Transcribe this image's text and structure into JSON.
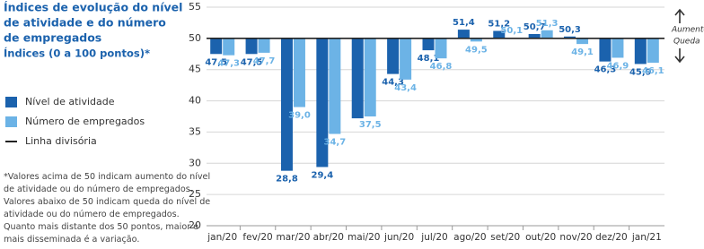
{
  "chart_data": {
    "type": "bar",
    "title_lines": [
      "Índices de evolução do nível",
      "de atividade e do número",
      "de empregados"
    ],
    "subtitle": "Índices (0 a 100 pontos)*",
    "footnote_lines": [
      "*Valores acima de 50 indicam aumento do nível",
      "de atividade ou do número de empregados.",
      "Valores abaixo de 50 indicam queda do nível de",
      "atividade ou do número de empregados.",
      "Quanto mais distante dos 50 pontos, maior e",
      "mais disseminada é a variação."
    ],
    "annotations": {
      "up": "Aumento",
      "down": "Queda"
    },
    "categories": [
      "jan/20",
      "fev/20",
      "mar/20",
      "abr/20",
      "mai/20",
      "jun/20",
      "jul/20",
      "ago/20",
      "set/20",
      "out/20",
      "nov/20",
      "dez/20",
      "jan/21"
    ],
    "series": [
      {
        "name": "Nível de atividade",
        "color": "#1b62ad",
        "values": [
          47.5,
          47.5,
          28.8,
          29.4,
          37.2,
          44.3,
          48.1,
          51.4,
          51.2,
          50.7,
          50.3,
          46.3,
          45.9
        ],
        "value_labels": [
          "47,5",
          "47,5",
          "28,8",
          "29,4",
          null,
          "44,3",
          "48,1",
          "51,4",
          "51,2",
          "50,7",
          "50,3",
          "46,3",
          "45,9"
        ]
      },
      {
        "name": "Número de empregados",
        "color": "#6cb3e6",
        "values": [
          47.3,
          47.7,
          39.0,
          34.7,
          37.5,
          43.4,
          46.8,
          49.5,
          50.1,
          51.3,
          49.1,
          46.9,
          46.1
        ],
        "value_labels": [
          "47,3",
          "47,7",
          "39,0",
          "34,7",
          "37,5",
          "43,4",
          "46,8",
          "49,5",
          "50,1",
          "51,3",
          "49,1",
          "46,9",
          "46,1"
        ]
      }
    ],
    "reference_line": {
      "name": "Linha divisória",
      "value": 50,
      "color": "#222222"
    },
    "ylim": [
      20,
      55
    ],
    "yticks": [
      20,
      25,
      30,
      35,
      40,
      45,
      50,
      55
    ],
    "grid": true
  }
}
